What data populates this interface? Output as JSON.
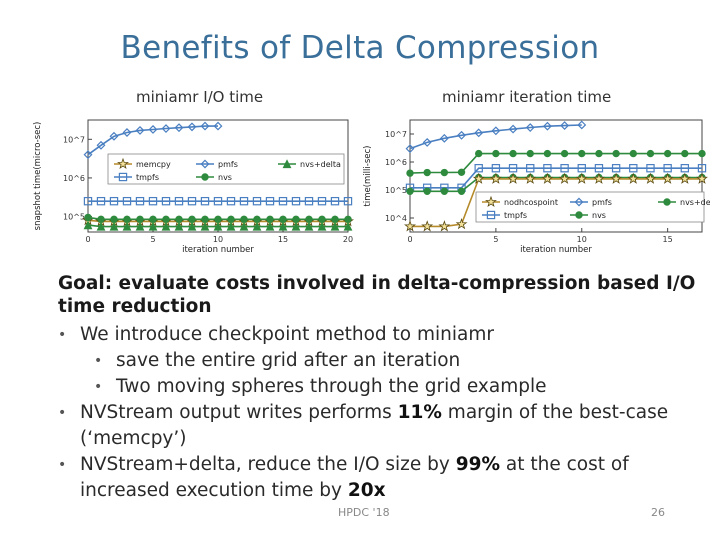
{
  "slide": {
    "title": "Benefits of Delta Compression",
    "left_caption": "miniamr I/O time",
    "right_caption": "miniamr iteration time",
    "goal": "Goal: evaluate costs involved in delta-compression based I/O time reduction",
    "bullets": [
      {
        "text": "We introduce checkpoint method to miniamr"
      },
      {
        "text": "save the entire grid after an iteration"
      },
      {
        "text": "Two moving spheres through the grid example"
      },
      {
        "pre": "NVStream output writes performs ",
        "hl": "11%",
        "post": " margin of the best-case (‘memcpy’)"
      },
      {
        "pre": "NVStream+delta, reduce the I/O size by ",
        "hl": "99%",
        "mid": " at the cost of increased execution time by ",
        "hl2": "20x"
      }
    ],
    "footer": "HPDC '18",
    "page_number": "26"
  },
  "chart_data": [
    {
      "type": "line",
      "ylabel": "snapshot time(micro-sec)",
      "xlabel": "iteration number",
      "y_scale": "log",
      "ytick_labels": [
        "10^5",
        "10^6",
        "10^7"
      ],
      "xtick_labels": [
        "0",
        "5",
        "10",
        "15",
        "20"
      ],
      "xlim": [
        0,
        20
      ],
      "legend": [
        "memcpy",
        "pmfs",
        "nvs+delta",
        "tmpfs",
        "nvs"
      ],
      "legend_position": "center",
      "series": [
        {
          "name": "pmfs",
          "color": "#4a7fc1",
          "marker": "diamond",
          "x": [
            0,
            1,
            2,
            3,
            4,
            5,
            6,
            7,
            8,
            9,
            10
          ],
          "y": [
            4000000,
            7000000,
            12000000,
            15000000,
            17000000,
            18000000,
            19000000,
            20000000,
            21000000,
            22000000,
            22000000
          ]
        },
        {
          "name": "tmpfs",
          "color": "#4a7fc1",
          "marker": "square",
          "x": [
            0,
            1,
            2,
            3,
            4,
            5,
            6,
            7,
            8,
            9,
            10,
            11,
            12,
            13,
            14,
            15,
            16,
            17,
            18,
            19,
            20
          ],
          "y": [
            250000,
            250000,
            250000,
            250000,
            250000,
            250000,
            250000,
            250000,
            250000,
            250000,
            250000,
            250000,
            250000,
            250000,
            250000,
            250000,
            250000,
            250000,
            250000,
            250000,
            250000
          ]
        },
        {
          "name": "memcpy",
          "color": "#b58a2a",
          "marker": "star",
          "x": [
            0,
            1,
            2,
            3,
            4,
            5,
            6,
            7,
            8,
            9,
            10,
            11,
            12,
            13,
            14,
            15,
            16,
            17,
            18,
            19,
            20
          ],
          "y": [
            80000,
            75000,
            75000,
            75000,
            75000,
            75000,
            75000,
            75000,
            75000,
            75000,
            75000,
            75000,
            75000,
            75000,
            75000,
            75000,
            75000,
            75000,
            75000,
            75000,
            75000
          ]
        },
        {
          "name": "nvs",
          "color": "#2e8b3e",
          "marker": "circle",
          "x": [
            0,
            1,
            2,
            3,
            4,
            5,
            6,
            7,
            8,
            9,
            10,
            11,
            12,
            13,
            14,
            15,
            16,
            17,
            18,
            19,
            20
          ],
          "y": [
            95000,
            85000,
            85000,
            85000,
            85000,
            85000,
            85000,
            85000,
            85000,
            85000,
            85000,
            85000,
            85000,
            85000,
            85000,
            85000,
            85000,
            85000,
            85000,
            85000,
            85000
          ]
        },
        {
          "name": "nvs+delta",
          "color": "#2e8b3e",
          "marker": "triangle",
          "x": [
            0,
            1,
            2,
            3,
            4,
            5,
            6,
            7,
            8,
            9,
            10,
            11,
            12,
            13,
            14,
            15,
            16,
            17,
            18,
            19,
            20
          ],
          "y": [
            60000,
            55000,
            55000,
            55000,
            55000,
            55000,
            55000,
            55000,
            55000,
            55000,
            55000,
            55000,
            55000,
            55000,
            55000,
            55000,
            55000,
            55000,
            55000,
            55000,
            55000
          ]
        }
      ]
    },
    {
      "type": "line",
      "ylabel": "time(milli-sec)",
      "xlabel": "iteration number",
      "y_scale": "log",
      "ytick_labels": [
        "10^4",
        "10^5",
        "10^6",
        "10^7"
      ],
      "xtick_labels": [
        "0",
        "5",
        "10",
        "15"
      ],
      "xlim": [
        0,
        17
      ],
      "legend": [
        "nodhcospoint",
        "pmfs",
        "nvs+delta",
        "tmpfs",
        "nvs"
      ],
      "legend_position": "lower right",
      "series": [
        {
          "name": "pmfs",
          "color": "#4a7fc1",
          "marker": "diamond",
          "x": [
            0,
            1,
            2,
            3,
            4,
            5,
            6,
            7,
            8,
            9,
            10
          ],
          "y": [
            3000000,
            5000000,
            7000000,
            9000000,
            11000000,
            13000000,
            15000000,
            17000000,
            19000000,
            20000000,
            21000000
          ]
        },
        {
          "name": "nvs+delta",
          "color": "#2e8b3e",
          "marker": "circle",
          "x": [
            0,
            1,
            2,
            3,
            4,
            5,
            6,
            7,
            8,
            9,
            10,
            11,
            12,
            13,
            14,
            15,
            16,
            17
          ],
          "y": [
            400000,
            420000,
            420000,
            430000,
            2000000,
            2000000,
            2000000,
            2000000,
            2000000,
            2000000,
            2000000,
            2000000,
            2000000,
            2000000,
            2000000,
            2000000,
            2000000,
            2000000
          ]
        },
        {
          "name": "tmpfs",
          "color": "#4a7fc1",
          "marker": "square",
          "x": [
            0,
            1,
            2,
            3,
            4,
            5,
            6,
            7,
            8,
            9,
            10,
            11,
            12,
            13,
            14,
            15,
            16,
            17
          ],
          "y": [
            120000,
            120000,
            120000,
            120000,
            600000,
            600000,
            600000,
            600000,
            600000,
            600000,
            600000,
            600000,
            600000,
            600000,
            600000,
            600000,
            600000,
            600000
          ]
        },
        {
          "name": "nvs",
          "color": "#2e8b3e",
          "marker": "circle",
          "x": [
            0,
            1,
            2,
            3,
            4,
            5,
            6,
            7,
            8,
            9,
            10,
            11,
            12,
            13,
            14,
            15,
            16,
            17
          ],
          "y": [
            90000,
            90000,
            90000,
            90000,
            280000,
            280000,
            280000,
            280000,
            280000,
            280000,
            280000,
            280000,
            280000,
            280000,
            280000,
            280000,
            280000,
            280000
          ]
        },
        {
          "name": "nodhcospoint",
          "color": "#b58a2a",
          "marker": "star",
          "x": [
            0,
            1,
            2,
            3,
            4,
            5,
            6,
            7,
            8,
            9,
            10,
            11,
            12,
            13,
            14,
            15,
            16,
            17
          ],
          "y": [
            5000,
            5000,
            5000,
            6000,
            250000,
            250000,
            250000,
            250000,
            250000,
            250000,
            250000,
            250000,
            250000,
            250000,
            250000,
            250000,
            250000,
            250000
          ]
        }
      ]
    }
  ]
}
